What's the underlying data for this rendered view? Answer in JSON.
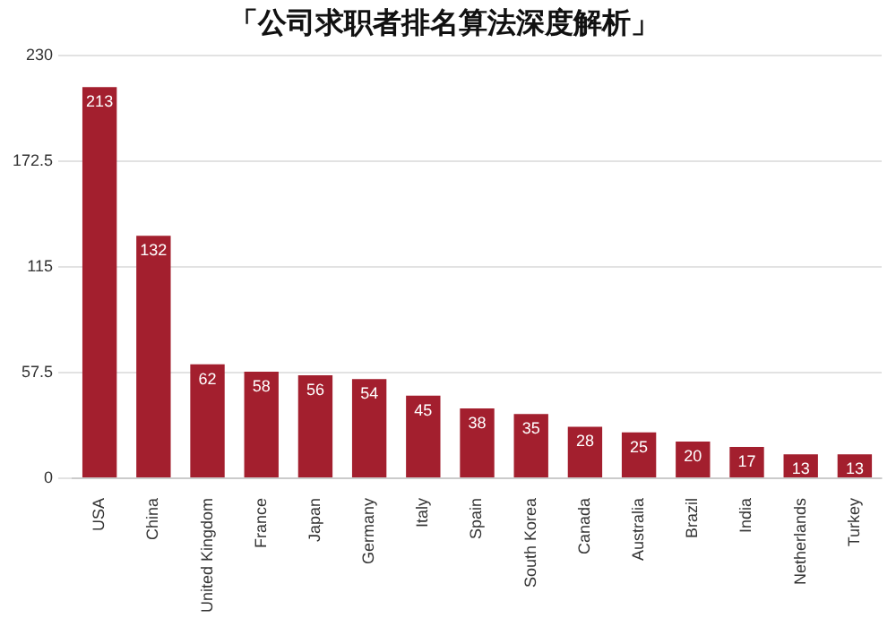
{
  "chart_data": {
    "type": "bar",
    "title": "「公司求职者排名算法深度解析」",
    "categories": [
      "USA",
      "China",
      "United Kingdom",
      "France",
      "Japan",
      "Germany",
      "Italy",
      "Spain",
      "South Korea",
      "Canada",
      "Australia",
      "Brazil",
      "India",
      "Netherlands",
      "Turkey"
    ],
    "values": [
      213,
      132,
      62,
      58,
      56,
      54,
      45,
      38,
      35,
      28,
      25,
      20,
      17,
      13,
      13
    ],
    "color": "#a31f2e",
    "ylim": [
      0,
      230
    ],
    "yticks": [
      0,
      57.5,
      115,
      172.5,
      230
    ],
    "grid": "y",
    "data_labels": true,
    "legend": false
  }
}
